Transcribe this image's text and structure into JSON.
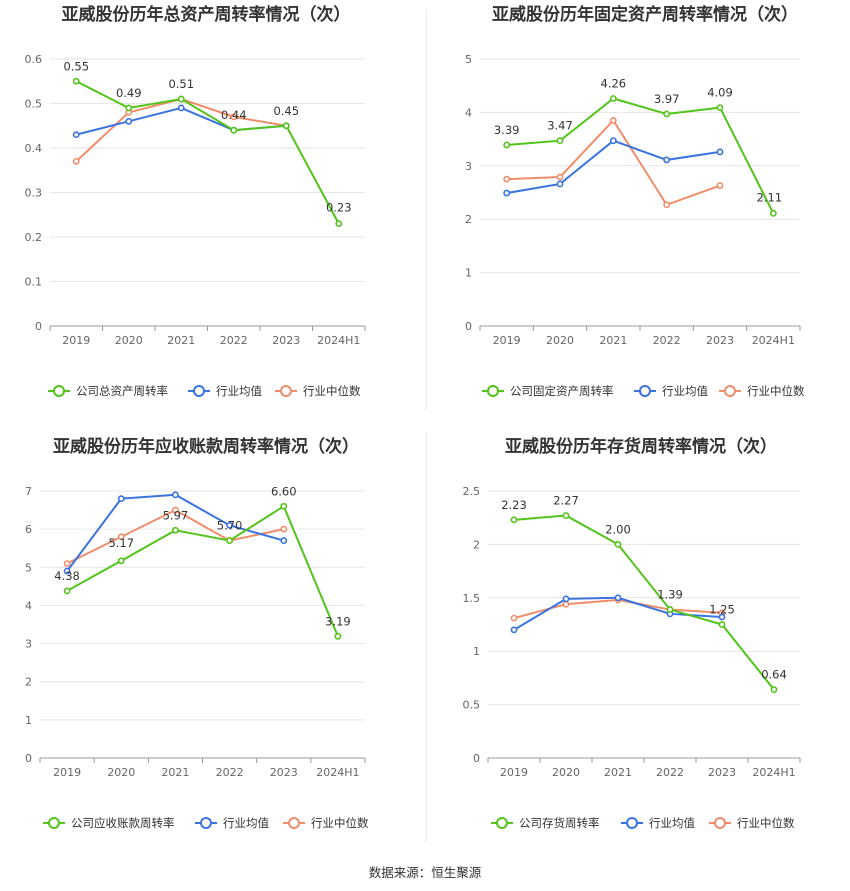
{
  "colors": {
    "company": "#52c41a",
    "average": "#3a73e0",
    "median": "#f08c6a"
  },
  "source_text": "数据来源：恒生聚源",
  "chart_data": [
    {
      "type": "line",
      "title": "亚威股份历年总资产周转率情况（次）",
      "categories": [
        "2019",
        "2020",
        "2021",
        "2022",
        "2023",
        "2024H1"
      ],
      "ylim": [
        0,
        0.6
      ],
      "yticks": [
        "0",
        "0.1",
        "0.2",
        "0.3",
        "0.4",
        "0.5",
        "0.6"
      ],
      "series": [
        {
          "name": "公司总资产周转率",
          "key": "company",
          "values": [
            0.55,
            0.49,
            0.51,
            0.44,
            0.45,
            0.23
          ],
          "labels": [
            "0.55",
            "0.49",
            "0.51",
            "0.44",
            "0.45",
            "0.23"
          ]
        },
        {
          "name": "行业均值",
          "key": "average",
          "values": [
            0.43,
            0.46,
            0.49,
            0.44,
            0.45,
            null
          ]
        },
        {
          "name": "行业中位数",
          "key": "median",
          "values": [
            0.37,
            0.48,
            0.51,
            0.47,
            0.45,
            null
          ]
        }
      ]
    },
    {
      "type": "line",
      "title": "亚威股份历年固定资产周转率情况（次）",
      "categories": [
        "2019",
        "2020",
        "2021",
        "2022",
        "2023",
        "2024H1"
      ],
      "ylim": [
        0,
        5
      ],
      "yticks": [
        "0",
        "1",
        "2",
        "3",
        "4",
        "5"
      ],
      "series": [
        {
          "name": "公司固定资产周转率",
          "key": "company",
          "values": [
            3.39,
            3.47,
            4.26,
            3.97,
            4.09,
            2.11
          ],
          "labels": [
            "3.39",
            "3.47",
            "4.26",
            "3.97",
            "4.09",
            "2.11"
          ]
        },
        {
          "name": "行业均值",
          "key": "average",
          "values": [
            2.49,
            2.66,
            3.47,
            3.11,
            3.26,
            null
          ]
        },
        {
          "name": "行业中位数",
          "key": "median",
          "values": [
            2.75,
            2.79,
            3.85,
            2.27,
            2.63,
            null
          ]
        }
      ]
    },
    {
      "type": "line",
      "title": "亚威股份历年应收账款周转率情况（次）",
      "categories": [
        "2019",
        "2020",
        "2021",
        "2022",
        "2023",
        "2024H1"
      ],
      "ylim": [
        0,
        7
      ],
      "yticks": [
        "0",
        "1",
        "2",
        "3",
        "4",
        "5",
        "6",
        "7"
      ],
      "series": [
        {
          "name": "公司应收账款周转率",
          "key": "company",
          "values": [
            4.38,
            5.17,
            5.97,
            5.7,
            6.6,
            3.19
          ],
          "labels": [
            "4.38",
            "5.17",
            "5.97",
            "5.70",
            "6.60",
            "3.19"
          ]
        },
        {
          "name": "行业均值",
          "key": "average",
          "values": [
            4.9,
            6.8,
            6.9,
            6.1,
            5.7,
            null
          ]
        },
        {
          "name": "行业中位数",
          "key": "median",
          "values": [
            5.1,
            5.8,
            6.5,
            5.7,
            6.0,
            null
          ]
        }
      ]
    },
    {
      "type": "line",
      "title": "亚威股份历年存货周转率情况（次）",
      "categories": [
        "2019",
        "2020",
        "2021",
        "2022",
        "2023",
        "2024H1"
      ],
      "ylim": [
        0,
        2.5
      ],
      "yticks": [
        "0",
        "0.5",
        "1",
        "1.5",
        "2",
        "2.5"
      ],
      "series": [
        {
          "name": "公司存货周转率",
          "key": "company",
          "values": [
            2.23,
            2.27,
            2.0,
            1.39,
            1.25,
            0.64
          ],
          "labels": [
            "2.23",
            "2.27",
            "2.00",
            "1.39",
            "1.25",
            "0.64"
          ]
        },
        {
          "name": "行业均值",
          "key": "average",
          "values": [
            1.2,
            1.49,
            1.5,
            1.35,
            1.32,
            null
          ]
        },
        {
          "name": "行业中位数",
          "key": "median",
          "values": [
            1.31,
            1.44,
            1.48,
            1.39,
            1.36,
            null
          ]
        }
      ]
    }
  ]
}
